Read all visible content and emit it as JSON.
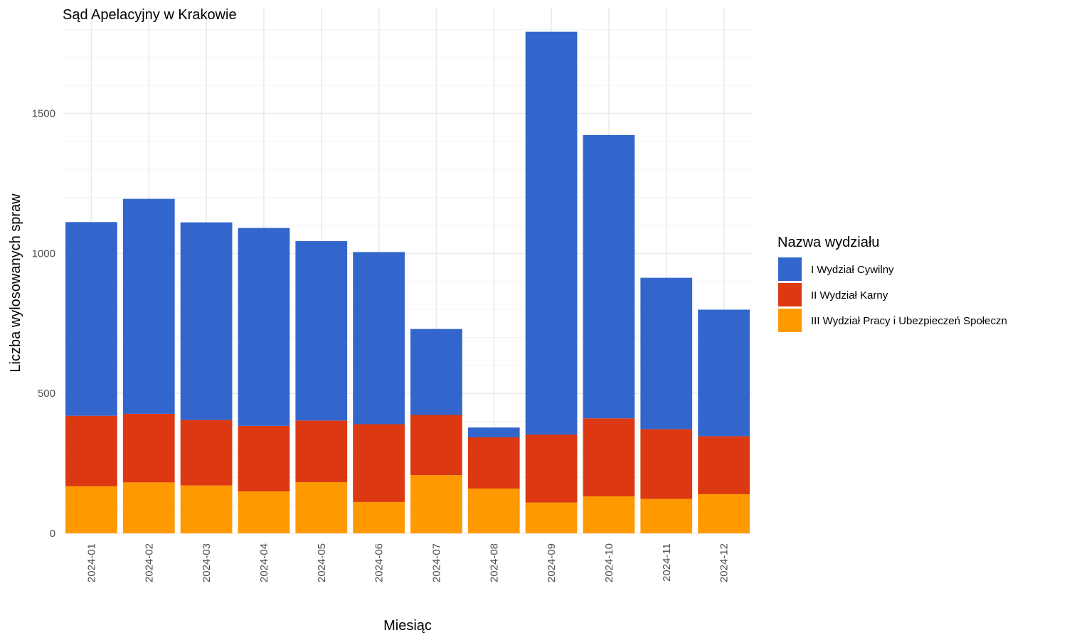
{
  "chart_data": {
    "type": "bar",
    "stacked": true,
    "title": "Sąd Apelacyjny w Krakowie",
    "xlabel": "Miesiąc",
    "ylabel": "Liczba wylosowanych spraw",
    "categories": [
      "2024-01",
      "2024-02",
      "2024-03",
      "2024-04",
      "2024-05",
      "2024-06",
      "2024-07",
      "2024-08",
      "2024-09",
      "2024-10",
      "2024-11",
      "2024-12"
    ],
    "ylim": [
      0,
      1880
    ],
    "yticks": [
      0,
      500,
      1000,
      1500
    ],
    "grid": true,
    "legend": {
      "title": "Nazwa wydziału",
      "position": "right"
    },
    "series": [
      {
        "name": "III Wydział Pracy i Ubezpieczeń Społeczn",
        "color": "#FF9900",
        "values": [
          168,
          182,
          171,
          150,
          183,
          112,
          208,
          160,
          110,
          132,
          123,
          140
        ]
      },
      {
        "name": "II Wydział Karny",
        "color": "#DC3912",
        "values": [
          252,
          245,
          234,
          234,
          220,
          278,
          215,
          183,
          243,
          279,
          249,
          207
        ]
      },
      {
        "name": "I Wydział Cywilny",
        "color": "#3366CC",
        "values": [
          692,
          768,
          706,
          707,
          641,
          615,
          307,
          35,
          1439,
          1012,
          541,
          452
        ]
      }
    ],
    "legend_order": [
      "I Wydział Cywilny",
      "II Wydział Karny",
      "III Wydział Pracy i Ubezpieczeń Społeczn"
    ]
  }
}
